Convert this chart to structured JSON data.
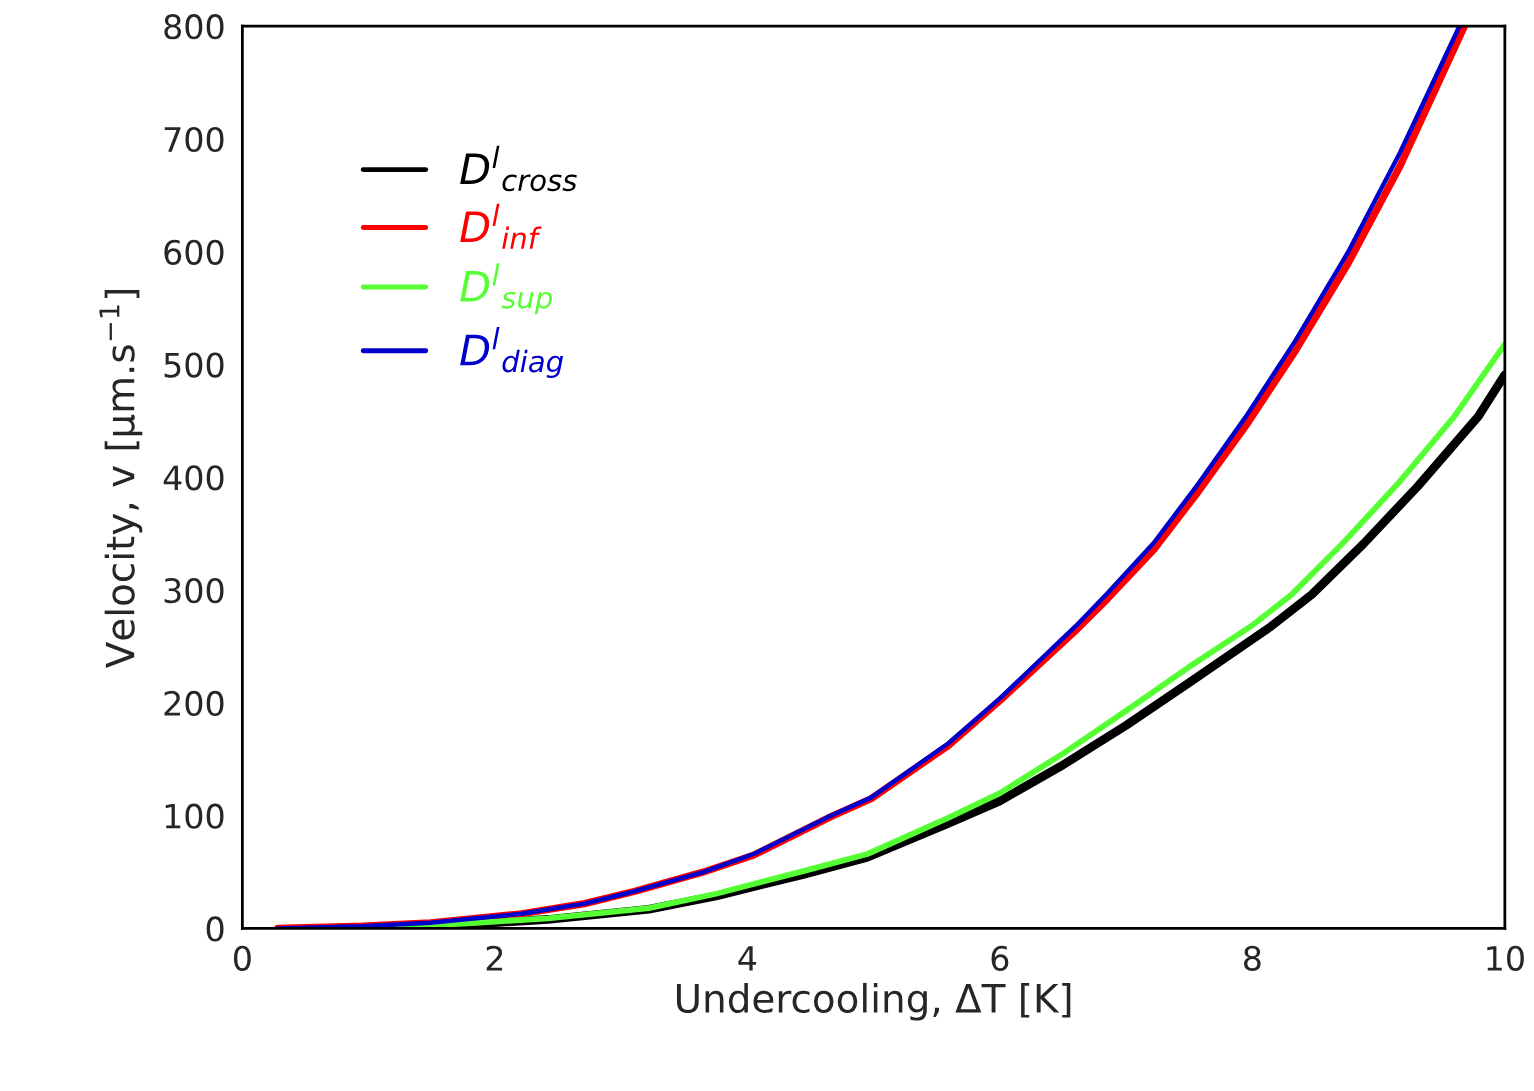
{
  "chart_data": {
    "type": "line",
    "xlabel": "Undercooling, ΔT [K]",
    "ylabel": "Velocity, v [µm.s$^{−1}$]",
    "xlim": [
      0,
      10
    ],
    "xticks": [
      0,
      2,
      4,
      6,
      8,
      10
    ],
    "ylim": [
      0,
      800
    ],
    "yticks": [
      0,
      100,
      200,
      300,
      400,
      500,
      600,
      700,
      800
    ],
    "grid": false,
    "legend": "top left",
    "marker": "none",
    "line_style": "solid",
    "series": [
      {
        "name": "D$^{l}$$_{cross}$",
        "color": "#000000",
        "x": [
          1.05,
          1.85,
          2.42,
          3.22,
          3.76,
          4.45,
          4.95,
          5.59,
          6.0,
          6.5,
          7.0,
          7.5,
          8.15,
          8.47,
          8.88,
          9.31,
          9.79,
          10.0
        ],
        "values": [
          0,
          4,
          8,
          17,
          29,
          48,
          63,
          93,
          113,
          145,
          180,
          218,
          268,
          296,
          341,
          392,
          454,
          491
        ]
      },
      {
        "name": "D$^{l}$$_{inf}$",
        "color": "#ff0000",
        "x": [
          0.28,
          0.95,
          1.49,
          1.85,
          2.21,
          2.71,
          3.11,
          3.65,
          4.05,
          4.66,
          4.98,
          5.59,
          6.0,
          6.6,
          6.85,
          7.22,
          7.57,
          7.95,
          8.34,
          8.76,
          9.17,
          9.68
        ],
        "values": [
          0,
          2,
          5,
          9,
          13,
          22,
          33,
          50,
          65,
          99,
          115,
          162,
          202,
          264,
          292,
          336,
          387,
          446,
          512,
          590,
          676,
          800
        ]
      },
      {
        "name": "D$^{l}$$_{sup}$",
        "color": "#55ff33",
        "x": [
          1.05,
          1.85,
          2.42,
          3.22,
          3.76,
          4.45,
          4.95,
          5.59,
          6.0,
          6.5,
          7.0,
          7.5,
          7.99,
          8.31,
          8.72,
          9.15,
          9.6,
          10.0
        ],
        "values": [
          0,
          5,
          9,
          18,
          31,
          51,
          66,
          98,
          120,
          155,
          193,
          232,
          268,
          296,
          342,
          394,
          454,
          518
        ]
      },
      {
        "name": "D$^{l}$$_{diag}$",
        "color": "#0000cc",
        "x": [
          0.28,
          0.95,
          1.49,
          1.85,
          2.21,
          2.71,
          3.11,
          3.65,
          4.05,
          4.66,
          4.98,
          5.59,
          6.0,
          6.6,
          6.85,
          7.22,
          7.57,
          7.95,
          8.34,
          8.76,
          9.17,
          9.64
        ],
        "values": [
          0,
          2,
          5,
          9,
          13,
          22,
          33,
          50,
          66,
          100,
          116,
          164,
          204,
          268,
          297,
          342,
          394,
          454,
          521,
          600,
          688,
          800
        ]
      }
    ]
  }
}
